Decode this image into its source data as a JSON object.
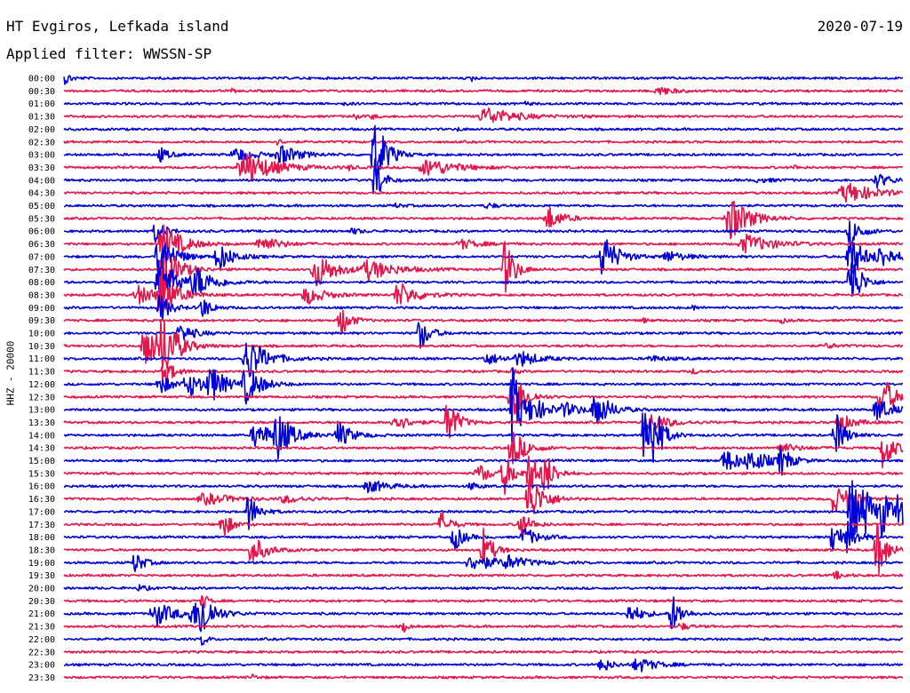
{
  "header": {
    "station": "HT Evgiros, Lefkada island",
    "date": "2020-07-19",
    "filter": "Applied filter: WWSSN-SP",
    "channel_label": "HHZ - 20000"
  },
  "chart_data": {
    "type": "line",
    "title": "HT Evgiros, Lefkada island",
    "ylabel": "HHZ - 20000",
    "colors": [
      "#0000dd",
      "#e8154a"
    ],
    "rows": [
      {
        "label": "00:00",
        "color": "#0000dd",
        "events": [
          [
            0.2,
            7,
            0.6
          ],
          [
            48.6,
            3,
            0.4
          ]
        ]
      },
      {
        "label": "00:30",
        "color": "#e8154a",
        "events": [
          [
            20.0,
            2,
            0.4
          ],
          [
            71.0,
            5,
            1.5
          ]
        ]
      },
      {
        "label": "01:00",
        "color": "#0000dd",
        "events": [
          [
            33.5,
            2,
            0.5
          ],
          [
            55.0,
            2,
            0.5
          ]
        ]
      },
      {
        "label": "01:30",
        "color": "#e8154a",
        "events": [
          [
            34.5,
            4,
            0.5
          ],
          [
            36.7,
            3,
            0.5
          ],
          [
            50.5,
            10,
            3
          ],
          [
            62,
            2,
            0.5
          ]
        ]
      },
      {
        "label": "02:00",
        "color": "#0000dd",
        "events": [
          [
            47.0,
            2,
            0.4
          ]
        ]
      },
      {
        "label": "02:30",
        "color": "#e8154a",
        "events": [
          [
            25.5,
            3,
            0.6
          ]
        ]
      },
      {
        "label": "03:00",
        "color": "#0000dd",
        "events": [
          [
            11.5,
            8,
            1
          ],
          [
            20.7,
            8,
            2
          ],
          [
            26.0,
            10,
            2
          ],
          [
            37.1,
            45,
            1.2
          ]
        ]
      },
      {
        "label": "03:30",
        "color": "#e8154a",
        "events": [
          [
            21.8,
            18,
            3
          ],
          [
            34.0,
            3,
            0.5
          ],
          [
            43.5,
            10,
            3
          ],
          [
            87.0,
            3,
            0.5
          ]
        ]
      },
      {
        "label": "04:00",
        "color": "#0000dd",
        "events": [
          [
            37.1,
            30,
            0.8
          ],
          [
            83.0,
            2,
            2
          ],
          [
            97.0,
            8,
            1.5
          ]
        ]
      },
      {
        "label": "04:30",
        "color": "#e8154a",
        "events": [
          [
            93.5,
            11,
            3
          ]
        ]
      },
      {
        "label": "05:00",
        "color": "#0000dd",
        "events": [
          [
            39.5,
            2,
            1
          ],
          [
            50.5,
            3,
            1
          ]
        ]
      },
      {
        "label": "05:30",
        "color": "#e8154a",
        "events": [
          [
            57.7,
            14,
            1.5
          ],
          [
            79.5,
            25,
            2
          ]
        ]
      },
      {
        "label": "06:00",
        "color": "#0000dd",
        "events": [
          [
            11.0,
            14,
            1
          ],
          [
            34.5,
            3,
            1
          ],
          [
            93.8,
            16,
            1.2
          ]
        ]
      },
      {
        "label": "06:30",
        "color": "#e8154a",
        "events": [
          [
            12.0,
            22,
            2
          ],
          [
            23.5,
            9,
            2
          ],
          [
            47.5,
            5,
            2
          ],
          [
            81.5,
            10,
            3
          ]
        ]
      },
      {
        "label": "07:00",
        "color": "#0000dd",
        "events": [
          [
            11.5,
            28,
            1.5
          ],
          [
            18.5,
            16,
            1.5
          ],
          [
            64.4,
            26,
            1.5
          ],
          [
            72.0,
            6,
            2
          ],
          [
            93.8,
            24,
            1.5
          ],
          [
            97.5,
            10,
            2
          ]
        ]
      },
      {
        "label": "07:30",
        "color": "#e8154a",
        "events": [
          [
            12.0,
            32,
            1.5
          ],
          [
            30.2,
            20,
            2
          ],
          [
            36.5,
            10,
            3
          ],
          [
            52.6,
            34,
            1
          ]
        ]
      },
      {
        "label": "08:00",
        "color": "#0000dd",
        "events": [
          [
            11.5,
            34,
            1.5
          ],
          [
            15.8,
            16,
            2
          ],
          [
            93.8,
            40,
            1
          ]
        ]
      },
      {
        "label": "08:30",
        "color": "#e8154a",
        "events": [
          [
            9.0,
            10,
            2
          ],
          [
            11.5,
            30,
            1.5
          ],
          [
            29.0,
            10,
            2
          ],
          [
            40.0,
            14,
            2
          ]
        ]
      },
      {
        "label": "09:00",
        "color": "#0000dd",
        "events": [
          [
            11.5,
            18,
            1
          ],
          [
            16.5,
            12,
            1
          ],
          [
            75,
            3,
            0.5
          ]
        ]
      },
      {
        "label": "09:30",
        "color": "#e8154a",
        "events": [
          [
            33.0,
            18,
            1
          ],
          [
            69.0,
            3,
            0.5
          ],
          [
            85.5,
            3,
            0.5
          ]
        ]
      },
      {
        "label": "10:00",
        "color": "#0000dd",
        "events": [
          [
            14.0,
            10,
            1.5
          ],
          [
            42.5,
            20,
            1
          ]
        ]
      },
      {
        "label": "10:30",
        "color": "#e8154a",
        "events": [
          [
            9.8,
            28,
            1.5
          ],
          [
            11.9,
            34,
            1.5
          ],
          [
            91.0,
            3,
            1
          ]
        ]
      },
      {
        "label": "11:00",
        "color": "#0000dd",
        "events": [
          [
            22.0,
            24,
            2
          ],
          [
            50.5,
            6,
            2
          ],
          [
            54.5,
            8,
            2
          ],
          [
            70.0,
            3,
            2
          ]
        ]
      },
      {
        "label": "11:30",
        "color": "#e8154a",
        "events": [
          [
            12.0,
            16,
            1
          ],
          [
            53.5,
            4,
            0.5
          ],
          [
            75,
            3,
            0.5
          ]
        ]
      },
      {
        "label": "12:00",
        "color": "#0000dd",
        "events": [
          [
            11.5,
            10,
            1.5
          ],
          [
            15.0,
            12,
            2
          ],
          [
            17.6,
            18,
            1.5
          ],
          [
            21.8,
            22,
            1.5
          ]
        ]
      },
      {
        "label": "12:30",
        "color": "#e8154a",
        "events": [
          [
            53.4,
            38,
            1.2
          ],
          [
            97.5,
            28,
            1.2
          ]
        ]
      },
      {
        "label": "13:00",
        "color": "#0000dd",
        "events": [
          [
            53.5,
            48,
            1
          ],
          [
            56.0,
            10,
            2
          ],
          [
            59.8,
            6,
            2
          ],
          [
            63.5,
            20,
            1.5
          ],
          [
            97.0,
            14,
            1.5
          ]
        ]
      },
      {
        "label": "13:30",
        "color": "#e8154a",
        "events": [
          [
            39.5,
            10,
            1.5
          ],
          [
            45.8,
            30,
            1
          ],
          [
            70.0,
            10,
            2
          ],
          [
            92.5,
            10,
            1.5
          ]
        ]
      },
      {
        "label": "14:00",
        "color": "#0000dd",
        "events": [
          [
            23.0,
            14,
            2
          ],
          [
            25.5,
            24,
            1.5
          ],
          [
            32.8,
            14,
            1.5
          ],
          [
            69.2,
            42,
            1
          ],
          [
            70.3,
            26,
            1
          ],
          [
            92.0,
            26,
            1
          ]
        ]
      },
      {
        "label": "14:30",
        "color": "#e8154a",
        "events": [
          [
            53.5,
            20,
            1.5
          ],
          [
            85.5,
            5,
            2
          ],
          [
            97.7,
            26,
            1
          ]
        ]
      },
      {
        "label": "15:00",
        "color": "#0000dd",
        "events": [
          [
            79.0,
            12,
            2
          ],
          [
            82.0,
            10,
            2
          ],
          [
            85.5,
            16,
            1
          ]
        ]
      },
      {
        "label": "15:30",
        "color": "#e8154a",
        "events": [
          [
            49.5,
            10,
            1.5
          ],
          [
            52.5,
            22,
            1
          ],
          [
            55.5,
            24,
            1
          ],
          [
            57.3,
            24,
            1
          ]
        ]
      },
      {
        "label": "16:00",
        "color": "#0000dd",
        "events": [
          [
            36.5,
            7,
            2
          ],
          [
            48.5,
            4,
            1
          ]
        ]
      },
      {
        "label": "16:30",
        "color": "#e8154a",
        "events": [
          [
            17.0,
            6,
            3
          ],
          [
            26.5,
            4,
            2
          ],
          [
            55.5,
            30,
            1.5
          ],
          [
            91.8,
            18,
            1
          ],
          [
            93.5,
            14,
            1
          ]
        ]
      },
      {
        "label": "17:00",
        "color": "#0000dd",
        "events": [
          [
            22.0,
            22,
            1
          ],
          [
            93.8,
            44,
            1
          ],
          [
            95.5,
            24,
            1
          ],
          [
            97.5,
            26,
            1
          ],
          [
            99.5,
            20,
            1
          ]
        ]
      },
      {
        "label": "17:30",
        "color": "#e8154a",
        "events": [
          [
            18.9,
            16,
            1
          ],
          [
            45.0,
            14,
            1
          ],
          [
            54.5,
            16,
            1
          ]
        ]
      },
      {
        "label": "18:00",
        "color": "#0000dd",
        "events": [
          [
            46.5,
            16,
            1
          ],
          [
            55.0,
            10,
            1.5
          ],
          [
            91.7,
            20,
            1
          ],
          [
            93.5,
            16,
            1
          ]
        ]
      },
      {
        "label": "18:30",
        "color": "#e8154a",
        "events": [
          [
            22.5,
            16,
            1.5
          ],
          [
            50.0,
            24,
            1
          ],
          [
            97.0,
            34,
            1
          ]
        ]
      },
      {
        "label": "19:00",
        "color": "#0000dd",
        "events": [
          [
            8.5,
            12,
            1
          ],
          [
            49.0,
            8,
            3
          ],
          [
            53.0,
            6,
            2
          ]
        ]
      },
      {
        "label": "19:30",
        "color": "#e8154a",
        "events": [
          [
            92.0,
            4,
            1
          ]
        ]
      },
      {
        "label": "20:00",
        "color": "#0000dd",
        "events": [
          [
            9.0,
            3,
            1
          ]
        ]
      },
      {
        "label": "20:30",
        "color": "#e8154a",
        "events": [
          [
            16.5,
            12,
            0.5
          ]
        ]
      },
      {
        "label": "21:00",
        "color": "#0000dd",
        "events": [
          [
            11.0,
            14,
            2
          ],
          [
            15.5,
            12,
            2
          ],
          [
            16.4,
            24,
            1
          ],
          [
            67.5,
            10,
            1.5
          ],
          [
            72.5,
            22,
            1
          ]
        ]
      },
      {
        "label": "21:30",
        "color": "#e8154a",
        "events": [
          [
            40.5,
            6,
            0.5
          ],
          [
            73.5,
            4,
            1
          ]
        ]
      },
      {
        "label": "22:00",
        "color": "#0000dd",
        "events": [
          [
            16.5,
            8,
            0.5
          ]
        ]
      },
      {
        "label": "22:30",
        "color": "#e8154a",
        "events": []
      },
      {
        "label": "23:00",
        "color": "#0000dd",
        "events": [
          [
            64.0,
            10,
            1
          ],
          [
            68.5,
            8,
            2
          ]
        ]
      },
      {
        "label": "23:30",
        "color": "#e8154a",
        "events": [
          [
            22.5,
            3,
            0.5
          ]
        ]
      }
    ]
  }
}
